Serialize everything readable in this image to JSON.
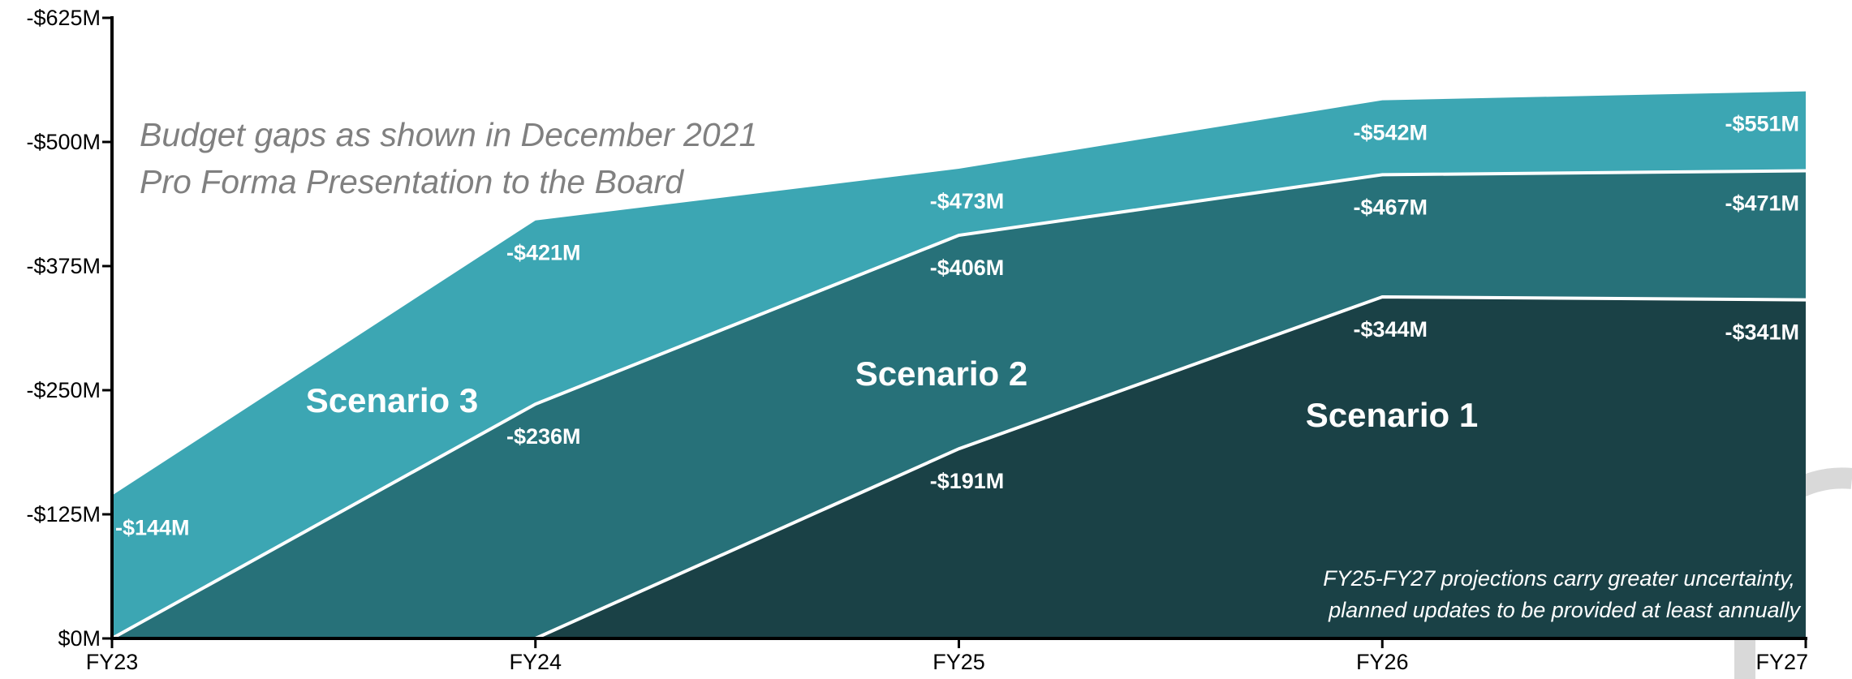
{
  "colors": {
    "scenario_3": "#3ca6b3",
    "scenario_2": "#277179",
    "scenario_1": "#1a4146",
    "divider_line": "#ffffff",
    "axis": "#000000",
    "title": "#808080",
    "watermark": "#d9d9d9"
  },
  "chart_data": {
    "type": "area",
    "title": "Budget gaps as shown in December 2021",
    "subtitle": "Pro Forma Presentation to the Board",
    "note_line_1": "FY25-FY27 projections carry greater uncertainty,",
    "note_line_2": "planned updates to be provided at least annually",
    "categories": [
      "FY23",
      "FY24",
      "FY25",
      "FY26",
      "FY27"
    ],
    "ylim": [
      0,
      625
    ],
    "y_ticks": [
      0,
      125,
      250,
      375,
      500,
      625
    ],
    "y_tick_labels": [
      "$0M",
      "-$125M",
      "-$250M",
      "-$375M",
      "-$500M",
      "-$625M"
    ],
    "grid": false,
    "series": [
      {
        "key": "scenario_1",
        "name": "Scenario 1",
        "values": [
          0,
          0,
          191,
          344,
          341
        ],
        "labels": [
          "",
          "",
          "-$191M",
          "-$344M",
          "-$341M"
        ]
      },
      {
        "key": "scenario_2",
        "name": "Scenario 2",
        "values": [
          0,
          236,
          406,
          467,
          471
        ],
        "labels": [
          "",
          "-$236M",
          "-$406M",
          "-$467M",
          "-$471M"
        ]
      },
      {
        "key": "scenario_3",
        "name": "Scenario 3",
        "values": [
          144,
          421,
          473,
          542,
          551
        ],
        "labels": [
          "-$144M",
          "-$421M",
          "-$473M",
          "-$542M",
          "-$551M"
        ]
      }
    ]
  }
}
